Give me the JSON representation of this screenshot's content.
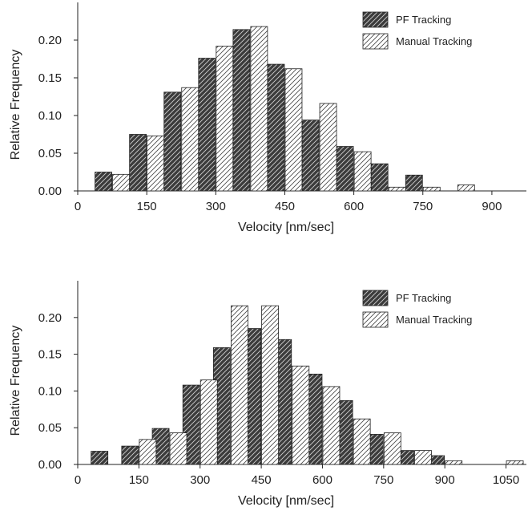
{
  "chart_data": [
    {
      "type": "bar",
      "xlabel": "Velocity [nm/sec]",
      "ylabel": "Relative Frequency",
      "xlim": [
        0,
        975
      ],
      "ylim": [
        0,
        0.25
      ],
      "xticks": [
        0,
        150,
        300,
        450,
        600,
        750,
        900
      ],
      "xtick_labels": [
        "0",
        "150",
        "300",
        "450",
        "600",
        "750",
        "900"
      ],
      "yticks": [
        0.0,
        0.05,
        0.1,
        0.15,
        0.2
      ],
      "ytick_labels": [
        "0.00",
        "0.05",
        "0.10",
        "0.15",
        "0.20"
      ],
      "grid": false,
      "legend_position": "top-right",
      "bin_centers": [
        75,
        150,
        225,
        300,
        375,
        450,
        525,
        600,
        675,
        750,
        825
      ],
      "series": [
        {
          "name": "PF Tracking",
          "pattern": "dark-hatch",
          "values": [
            0.025,
            0.075,
            0.131,
            0.176,
            0.214,
            0.168,
            0.094,
            0.059,
            0.036,
            0.021,
            0.0
          ]
        },
        {
          "name": "Manual Tracking",
          "pattern": "light-hatch",
          "values": [
            0.022,
            0.073,
            0.137,
            0.192,
            0.218,
            0.162,
            0.116,
            0.052,
            0.005,
            0.005,
            0.008
          ]
        }
      ]
    },
    {
      "type": "bar",
      "xlabel": "Velocity [nm/sec]",
      "ylabel": "Relative Frequency",
      "xlim": [
        0,
        1100
      ],
      "ylim": [
        0,
        0.25
      ],
      "xticks": [
        0,
        150,
        300,
        450,
        600,
        750,
        900,
        1050
      ],
      "xtick_labels": [
        "0",
        "150",
        "300",
        "450",
        "600",
        "750",
        "900",
        "1050"
      ],
      "yticks": [
        0.0,
        0.05,
        0.1,
        0.15,
        0.2
      ],
      "ytick_labels": [
        "0.00",
        "0.05",
        "0.10",
        "0.15",
        "0.20"
      ],
      "grid": false,
      "legend_position": "top-right",
      "bin_centers": [
        75,
        150,
        225,
        300,
        375,
        450,
        525,
        600,
        675,
        750,
        825,
        900,
        975,
        1050
      ],
      "series": [
        {
          "name": "PF Tracking",
          "pattern": "dark-hatch",
          "values": [
            0.018,
            0.025,
            0.049,
            0.108,
            0.159,
            0.185,
            0.17,
            0.123,
            0.087,
            0.041,
            0.019,
            0.012,
            0.0,
            0.0
          ]
        },
        {
          "name": "Manual Tracking",
          "pattern": "light-hatch",
          "values": [
            0.0,
            0.034,
            0.043,
            0.115,
            0.216,
            0.216,
            0.134,
            0.106,
            0.062,
            0.043,
            0.019,
            0.005,
            0.0,
            0.005
          ]
        }
      ]
    }
  ]
}
